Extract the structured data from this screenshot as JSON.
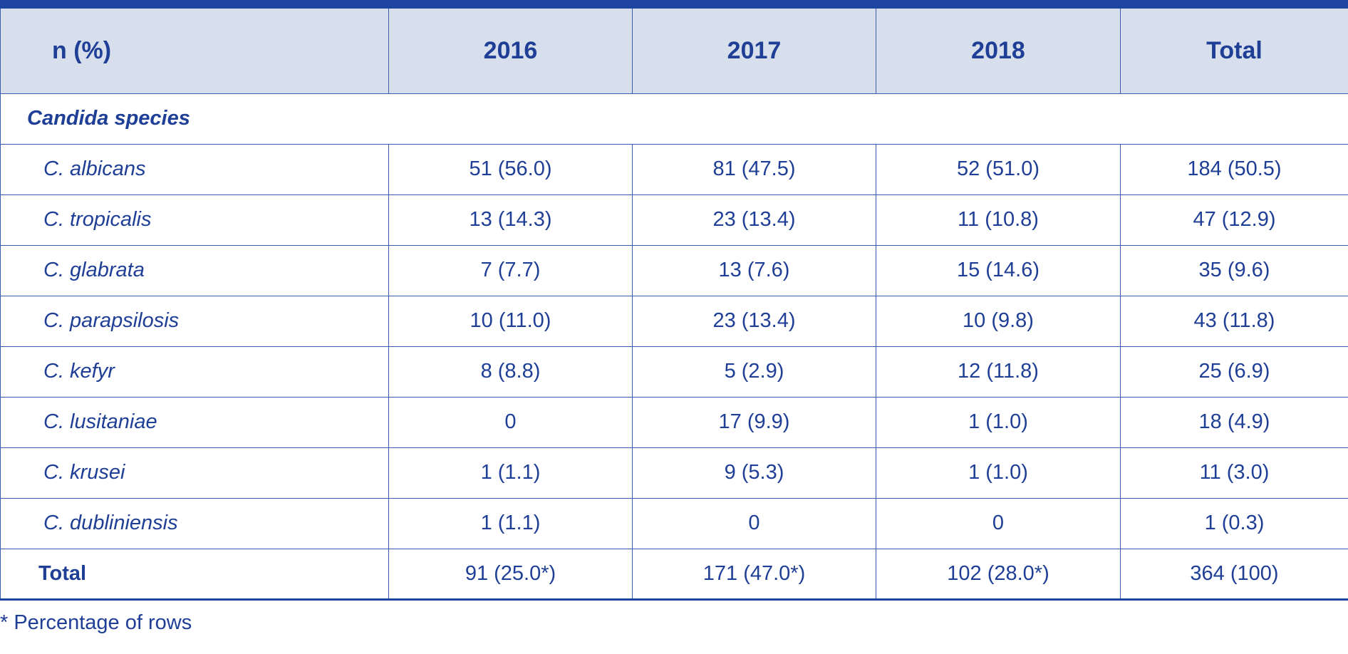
{
  "table": {
    "headers": [
      "n (%)",
      "2016",
      "2017",
      "2018",
      "Total"
    ],
    "section_label": "Candida species",
    "rows": [
      {
        "species": "C. albicans",
        "values": [
          "51 (56.0)",
          "81 (47.5)",
          "52 (51.0)",
          "184 (50.5)"
        ]
      },
      {
        "species": "C. tropicalis",
        "values": [
          "13 (14.3)",
          "23 (13.4)",
          "11 (10.8)",
          "47 (12.9)"
        ]
      },
      {
        "species": "C. glabrata",
        "values": [
          "7 (7.7)",
          "13 (7.6)",
          "15 (14.6)",
          "35 (9.6)"
        ]
      },
      {
        "species": "C. parapsilosis",
        "values": [
          "10 (11.0)",
          "23 (13.4)",
          "10 (9.8)",
          "43 (11.8)"
        ]
      },
      {
        "species": "C. kefyr",
        "values": [
          "8 (8.8)",
          "5 (2.9)",
          "12 (11.8)",
          "25 (6.9)"
        ]
      },
      {
        "species": "C. lusitaniae",
        "values": [
          "0",
          "17 (9.9)",
          "1 (1.0)",
          "18 (4.9)"
        ]
      },
      {
        "species": "C. krusei",
        "values": [
          "1 (1.1)",
          "9 (5.3)",
          "1 (1.0)",
          "11 (3.0)"
        ]
      },
      {
        "species": "C. dubliniensis",
        "values": [
          "1 (1.1)",
          "0",
          "0",
          "1 (0.3)"
        ]
      }
    ],
    "total_row": {
      "label": "Total",
      "values": [
        "91 (25.0*)",
        "171 (47.0*)",
        "102 (28.0*)",
        "364 (100)"
      ]
    }
  },
  "footnote": "* Percentage of rows"
}
